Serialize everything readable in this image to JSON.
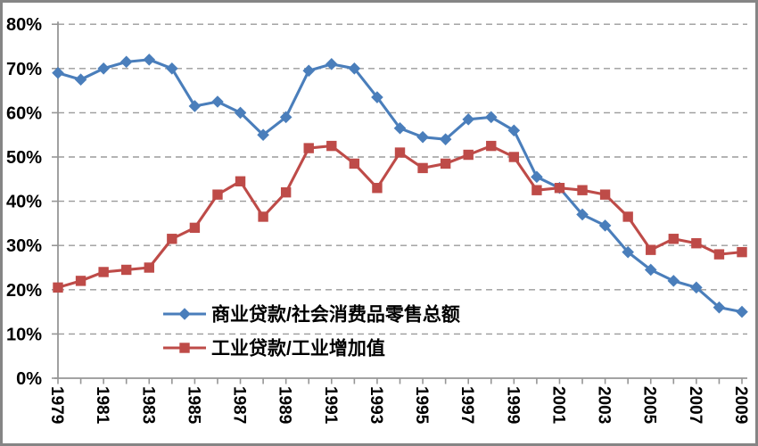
{
  "chart": {
    "background": "#FFFFFF",
    "frame_border_color": "#858585",
    "axis_color": "#969696",
    "gridline_color": "#9B9B9B",
    "label_color": "#000000"
  },
  "chart_data": {
    "type": "line",
    "title": "",
    "xlabel": "",
    "ylabel": "",
    "x": [
      1979,
      1980,
      1981,
      1982,
      1983,
      1984,
      1985,
      1986,
      1987,
      1988,
      1989,
      1990,
      1991,
      1992,
      1993,
      1994,
      1995,
      1996,
      1997,
      1998,
      1999,
      2000,
      2001,
      2002,
      2003,
      2004,
      2005,
      2006,
      2007,
      2008,
      2009
    ],
    "series": [
      {
        "name": "商业贷款/社会消费品零售总额",
        "color": "#4A7EBB",
        "marker": "diamond",
        "values": [
          69,
          67.5,
          70,
          71.5,
          72,
          70,
          61.5,
          62.5,
          60,
          55,
          59,
          69.5,
          71,
          70,
          63.5,
          56.5,
          54.5,
          54,
          58.5,
          59,
          56,
          45.5,
          43,
          37,
          34.5,
          28.5,
          24.5,
          22,
          20.5,
          16,
          15
        ]
      },
      {
        "name": "工业贷款/工业增加值",
        "color": "#BE4B48",
        "marker": "square",
        "values": [
          20.5,
          22,
          24,
          24.5,
          25,
          31.5,
          34,
          41.5,
          44.5,
          36.5,
          42,
          52,
          52.5,
          48.5,
          43,
          51,
          47.5,
          48.5,
          50.5,
          52.5,
          50,
          42.5,
          43,
          42.5,
          41.5,
          36.5,
          29,
          31.5,
          30.5,
          28,
          28.5
        ]
      }
    ],
    "ylim": [
      0,
      80
    ],
    "ytick_step": 10,
    "ytick_labels": [
      "0%",
      "10%",
      "20%",
      "30%",
      "40%",
      "50%",
      "60%",
      "70%",
      "80%"
    ],
    "xtick_labels": [
      "1979",
      "1981",
      "1983",
      "1985",
      "1987",
      "1989",
      "1991",
      "1993",
      "1995",
      "1997",
      "1999",
      "2001",
      "2003",
      "2005",
      "2007",
      "2009"
    ],
    "grid": "horizontal-dashed",
    "legend_position": "inside-bottom-left"
  }
}
